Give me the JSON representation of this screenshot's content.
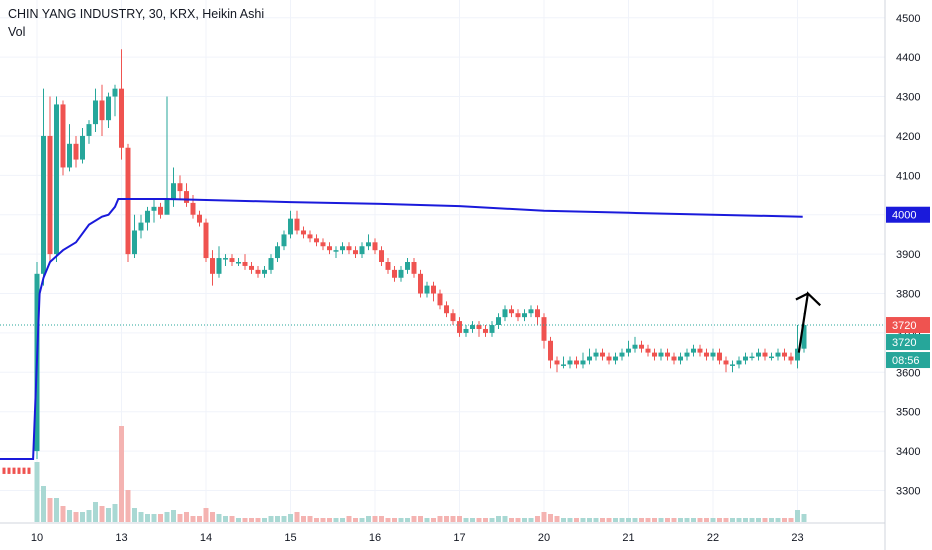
{
  "header": {
    "title": "CHIN YANG INDUSTRY, 30, KRX, Heikin Ashi",
    "volume_label": "Vol"
  },
  "colors": {
    "up": "#26a69a",
    "down": "#ef5350",
    "ma_line": "#1a1adb",
    "axis_text": "#131722",
    "grid": "#f0f3fa",
    "volume_up": "#a9d8d3",
    "volume_down": "#f4b3b1"
  },
  "badges": {
    "ma_price": "4000",
    "last_price": "3720",
    "close_price": "3720",
    "countdown": "08:56"
  },
  "chart_data": {
    "type": "candlestick",
    "price_axis": {
      "ylim": [
        3220,
        4540
      ],
      "ticks": [
        "4500",
        "4400",
        "4300",
        "4200",
        "4100",
        "4000",
        "3900",
        "3800",
        "3700",
        "3600",
        "3500",
        "3400",
        "3300"
      ]
    },
    "time_axis": {
      "ticks": [
        {
          "label": "10",
          "index": 0
        },
        {
          "label": "13",
          "index": 13
        },
        {
          "label": "14",
          "index": 26
        },
        {
          "label": "15",
          "index": 39
        },
        {
          "label": "16",
          "index": 52
        },
        {
          "label": "17",
          "index": 65
        },
        {
          "label": "20",
          "index": 78
        },
        {
          "label": "21",
          "index": 91
        },
        {
          "label": "22",
          "index": 104
        },
        {
          "label": "23",
          "index": 117
        }
      ]
    },
    "pre_session_close": 3350,
    "moving_average": [
      [
        -6,
        3380
      ],
      [
        -0.6,
        3380
      ],
      [
        0.4,
        3800
      ],
      [
        1,
        3840
      ],
      [
        2,
        3880
      ],
      [
        4,
        3910
      ],
      [
        6,
        3930
      ],
      [
        8,
        3975
      ],
      [
        10,
        3995
      ],
      [
        11,
        4000
      ],
      [
        12,
        4020
      ],
      [
        12.5,
        4040
      ],
      [
        20,
        4040
      ],
      [
        39,
        4032
      ],
      [
        52,
        4028
      ],
      [
        65,
        4022
      ],
      [
        78,
        4010
      ],
      [
        91,
        4005
      ],
      [
        104,
        4000
      ],
      [
        117.8,
        3995
      ]
    ],
    "candles": [
      [
        0,
        3400,
        3850,
        3880,
        3380,
        30
      ],
      [
        1,
        3850,
        4200,
        4320,
        3820,
        18
      ],
      [
        2,
        4200,
        3900,
        4300,
        3880,
        12
      ],
      [
        3,
        3900,
        4280,
        4300,
        3880,
        12
      ],
      [
        4,
        4280,
        4120,
        4290,
        4100,
        8
      ],
      [
        5,
        4120,
        4180,
        4230,
        4110,
        6
      ],
      [
        6,
        4180,
        4140,
        4200,
        4120,
        5
      ],
      [
        7,
        4140,
        4200,
        4220,
        4130,
        5
      ],
      [
        8,
        4200,
        4230,
        4240,
        4180,
        6
      ],
      [
        9,
        4230,
        4290,
        4320,
        4210,
        10
      ],
      [
        10,
        4290,
        4240,
        4330,
        4200,
        8
      ],
      [
        11,
        4240,
        4300,
        4310,
        4220,
        7
      ],
      [
        12,
        4300,
        4320,
        4330,
        4250,
        9
      ],
      [
        13,
        4320,
        4170,
        4420,
        4140,
        48
      ],
      [
        14,
        4170,
        3900,
        4180,
        3880,
        16
      ],
      [
        15,
        3900,
        3960,
        4000,
        3890,
        7
      ],
      [
        16,
        3960,
        3980,
        4000,
        3940,
        5
      ],
      [
        17,
        3980,
        4010,
        4020,
        3960,
        4
      ],
      [
        18,
        4010,
        4020,
        4040,
        3980,
        4
      ],
      [
        19,
        4020,
        4000,
        4030,
        3990,
        4
      ],
      [
        20,
        4000,
        4040,
        4300,
        4010,
        5
      ],
      [
        21,
        4040,
        4080,
        4120,
        4020,
        6
      ],
      [
        22,
        4080,
        4060,
        4100,
        4040,
        4
      ],
      [
        23,
        4060,
        4030,
        4080,
        4020,
        5
      ],
      [
        24,
        4030,
        4000,
        4050,
        3990,
        3
      ],
      [
        25,
        4000,
        3980,
        4010,
        3970,
        3
      ],
      [
        26,
        3980,
        3890,
        3990,
        3880,
        7
      ],
      [
        27,
        3890,
        3850,
        3910,
        3820,
        5
      ],
      [
        28,
        3850,
        3890,
        3920,
        3840,
        4
      ],
      [
        29,
        3890,
        3890,
        3900,
        3870,
        3
      ],
      [
        30,
        3890,
        3880,
        3900,
        3870,
        3
      ],
      [
        31,
        3880,
        3880,
        3890,
        3870,
        2
      ],
      [
        32,
        3880,
        3870,
        3900,
        3860,
        2
      ],
      [
        33,
        3870,
        3860,
        3880,
        3850,
        2
      ],
      [
        34,
        3860,
        3850,
        3870,
        3840,
        2
      ],
      [
        35,
        3850,
        3860,
        3870,
        3840,
        2
      ],
      [
        36,
        3860,
        3890,
        3900,
        3850,
        3
      ],
      [
        37,
        3890,
        3920,
        3930,
        3880,
        3
      ],
      [
        38,
        3920,
        3950,
        3960,
        3910,
        3
      ],
      [
        39,
        3950,
        3990,
        4010,
        3940,
        4
      ],
      [
        40,
        3990,
        3960,
        4010,
        3950,
        5
      ],
      [
        41,
        3960,
        3950,
        3970,
        3940,
        3
      ],
      [
        42,
        3950,
        3940,
        3960,
        3930,
        3
      ],
      [
        43,
        3940,
        3930,
        3950,
        3920,
        2
      ],
      [
        44,
        3930,
        3920,
        3940,
        3910,
        2
      ],
      [
        45,
        3920,
        3910,
        3930,
        3900,
        2
      ],
      [
        46,
        3910,
        3910,
        3920,
        3890,
        2
      ],
      [
        47,
        3910,
        3920,
        3930,
        3900,
        2
      ],
      [
        48,
        3920,
        3910,
        3930,
        3900,
        3
      ],
      [
        49,
        3910,
        3900,
        3920,
        3890,
        2
      ],
      [
        50,
        3900,
        3920,
        3930,
        3890,
        2
      ],
      [
        51,
        3920,
        3930,
        3950,
        3910,
        3
      ],
      [
        52,
        3930,
        3910,
        3940,
        3900,
        3
      ],
      [
        53,
        3910,
        3880,
        3920,
        3870,
        3
      ],
      [
        54,
        3880,
        3860,
        3890,
        3850,
        2
      ],
      [
        55,
        3860,
        3840,
        3870,
        3830,
        2
      ],
      [
        56,
        3840,
        3860,
        3870,
        3830,
        2
      ],
      [
        57,
        3860,
        3880,
        3890,
        3850,
        2
      ],
      [
        58,
        3880,
        3850,
        3890,
        3840,
        3
      ],
      [
        59,
        3850,
        3800,
        3860,
        3790,
        3
      ],
      [
        60,
        3800,
        3820,
        3830,
        3790,
        2
      ],
      [
        61,
        3820,
        3800,
        3830,
        3780,
        2
      ],
      [
        62,
        3800,
        3770,
        3810,
        3760,
        3
      ],
      [
        63,
        3770,
        3750,
        3780,
        3740,
        3
      ],
      [
        64,
        3750,
        3730,
        3760,
        3720,
        3
      ],
      [
        65,
        3730,
        3700,
        3740,
        3690,
        3
      ],
      [
        66,
        3700,
        3710,
        3720,
        3690,
        2
      ],
      [
        67,
        3710,
        3720,
        3730,
        3700,
        2
      ],
      [
        68,
        3720,
        3710,
        3730,
        3690,
        2
      ],
      [
        69,
        3710,
        3700,
        3720,
        3690,
        2
      ],
      [
        70,
        3700,
        3720,
        3730,
        3690,
        2
      ],
      [
        71,
        3720,
        3740,
        3750,
        3710,
        3
      ],
      [
        72,
        3740,
        3760,
        3770,
        3730,
        3
      ],
      [
        73,
        3760,
        3750,
        3770,
        3740,
        2
      ],
      [
        74,
        3750,
        3740,
        3760,
        3730,
        2
      ],
      [
        75,
        3740,
        3750,
        3760,
        3730,
        2
      ],
      [
        76,
        3750,
        3760,
        3770,
        3740,
        2
      ],
      [
        77,
        3760,
        3740,
        3770,
        3720,
        3
      ],
      [
        78,
        3740,
        3680,
        3750,
        3660,
        5
      ],
      [
        79,
        3680,
        3630,
        3690,
        3610,
        4
      ],
      [
        80,
        3630,
        3620,
        3640,
        3600,
        3
      ],
      [
        81,
        3620,
        3620,
        3640,
        3610,
        2
      ],
      [
        82,
        3620,
        3630,
        3640,
        3610,
        2
      ],
      [
        83,
        3630,
        3620,
        3640,
        3610,
        2
      ],
      [
        84,
        3620,
        3630,
        3650,
        3610,
        2
      ],
      [
        85,
        3630,
        3640,
        3660,
        3620,
        2
      ],
      [
        86,
        3640,
        3650,
        3660,
        3630,
        2
      ],
      [
        87,
        3650,
        3640,
        3660,
        3630,
        2
      ],
      [
        88,
        3640,
        3630,
        3650,
        3620,
        2
      ],
      [
        89,
        3630,
        3640,
        3650,
        3620,
        2
      ],
      [
        90,
        3640,
        3650,
        3660,
        3630,
        2
      ],
      [
        91,
        3650,
        3660,
        3680,
        3640,
        2
      ],
      [
        92,
        3660,
        3670,
        3690,
        3650,
        2
      ],
      [
        93,
        3670,
        3660,
        3680,
        3650,
        2
      ],
      [
        94,
        3660,
        3650,
        3670,
        3640,
        2
      ],
      [
        95,
        3650,
        3640,
        3660,
        3630,
        2
      ],
      [
        96,
        3640,
        3650,
        3660,
        3630,
        2
      ],
      [
        97,
        3650,
        3640,
        3660,
        3630,
        2
      ],
      [
        98,
        3640,
        3630,
        3650,
        3620,
        2
      ],
      [
        99,
        3630,
        3640,
        3650,
        3620,
        2
      ],
      [
        100,
        3640,
        3650,
        3660,
        3630,
        2
      ],
      [
        101,
        3650,
        3660,
        3670,
        3640,
        2
      ],
      [
        102,
        3660,
        3650,
        3670,
        3640,
        2
      ],
      [
        103,
        3650,
        3640,
        3660,
        3630,
        2
      ],
      [
        104,
        3640,
        3650,
        3660,
        3630,
        2
      ],
      [
        105,
        3650,
        3630,
        3660,
        3620,
        2
      ],
      [
        106,
        3630,
        3620,
        3640,
        3600,
        2
      ],
      [
        107,
        3620,
        3620,
        3630,
        3600,
        2
      ],
      [
        108,
        3620,
        3630,
        3640,
        3610,
        2
      ],
      [
        109,
        3630,
        3640,
        3650,
        3620,
        2
      ],
      [
        110,
        3640,
        3640,
        3650,
        3630,
        2
      ],
      [
        111,
        3640,
        3650,
        3660,
        3630,
        2
      ],
      [
        112,
        3650,
        3640,
        3660,
        3630,
        2
      ],
      [
        113,
        3640,
        3640,
        3650,
        3630,
        2
      ],
      [
        114,
        3640,
        3650,
        3660,
        3630,
        2
      ],
      [
        115,
        3650,
        3640,
        3660,
        3630,
        2
      ],
      [
        116,
        3640,
        3630,
        3650,
        3620,
        2
      ],
      [
        117,
        3630,
        3660,
        3720,
        3610,
        6
      ],
      [
        118,
        3660,
        3720,
        3750,
        3650,
        4
      ]
    ],
    "annotation": {
      "type": "arrow",
      "from": [
        117.2,
        3650
      ],
      "mid": [
        118.6,
        3800
      ],
      "to": [
        120.5,
        3770
      ]
    },
    "grid": true,
    "legend": "top-left"
  }
}
